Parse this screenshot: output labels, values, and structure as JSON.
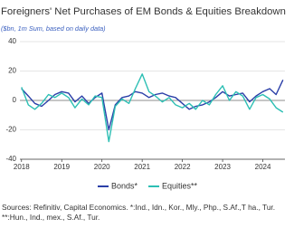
{
  "chart_data": {
    "type": "line",
    "title": "Foreigners' Net Purchases of EM Bonds & Equities Breakdown",
    "subtitle": "($bn, 1m Sum, based on daily data)",
    "x": [
      2018.0,
      2018.17,
      2018.33,
      2018.5,
      2018.67,
      2018.83,
      2019.0,
      2019.17,
      2019.33,
      2019.5,
      2019.67,
      2019.83,
      2020.0,
      2020.17,
      2020.33,
      2020.5,
      2020.67,
      2020.83,
      2021.0,
      2021.17,
      2021.33,
      2021.5,
      2021.67,
      2021.83,
      2022.0,
      2022.17,
      2022.33,
      2022.5,
      2022.67,
      2022.83,
      2023.0,
      2023.17,
      2023.33,
      2023.5,
      2023.67,
      2023.83,
      2024.0,
      2024.17,
      2024.33,
      2024.5
    ],
    "series": [
      {
        "name": "Bonds*",
        "color": "#2b3fa8",
        "values": [
          8,
          3,
          -2,
          -4,
          0,
          4,
          6,
          5,
          -1,
          3,
          -2,
          2,
          5,
          -20,
          -3,
          2,
          3,
          6,
          5,
          2,
          4,
          5,
          3,
          2,
          -2,
          -6,
          -4,
          -3,
          -1,
          2,
          6,
          3,
          4,
          5,
          -1,
          3,
          6,
          8,
          4,
          14
        ]
      },
      {
        "name": "Equities**",
        "color": "#2dbfb4",
        "values": [
          9,
          -3,
          -6,
          -2,
          4,
          2,
          5,
          2,
          -5,
          1,
          -3,
          3,
          2,
          -28,
          -4,
          1,
          -2,
          8,
          18,
          6,
          3,
          -1,
          2,
          -3,
          -5,
          -2,
          -6,
          0,
          -3,
          4,
          10,
          0,
          6,
          3,
          -6,
          2,
          4,
          1,
          -5,
          -8
        ]
      }
    ],
    "xlim": [
      2017.96,
      2024.55
    ],
    "xticks": [
      2018,
      2019,
      2020,
      2021,
      2022,
      2023,
      2024
    ],
    "ylim": [
      -40,
      40
    ],
    "yticks": [
      -40,
      -20,
      0,
      20,
      40
    ],
    "grid": true,
    "legend": "bottom",
    "source": "Sources: Refinitiv, Capital Economics. *:Ind., Idn., Kor., Mly., Php., S.Af.,T ha., Tur. **:Hun., Ind., mex., S.Af., Tur."
  }
}
